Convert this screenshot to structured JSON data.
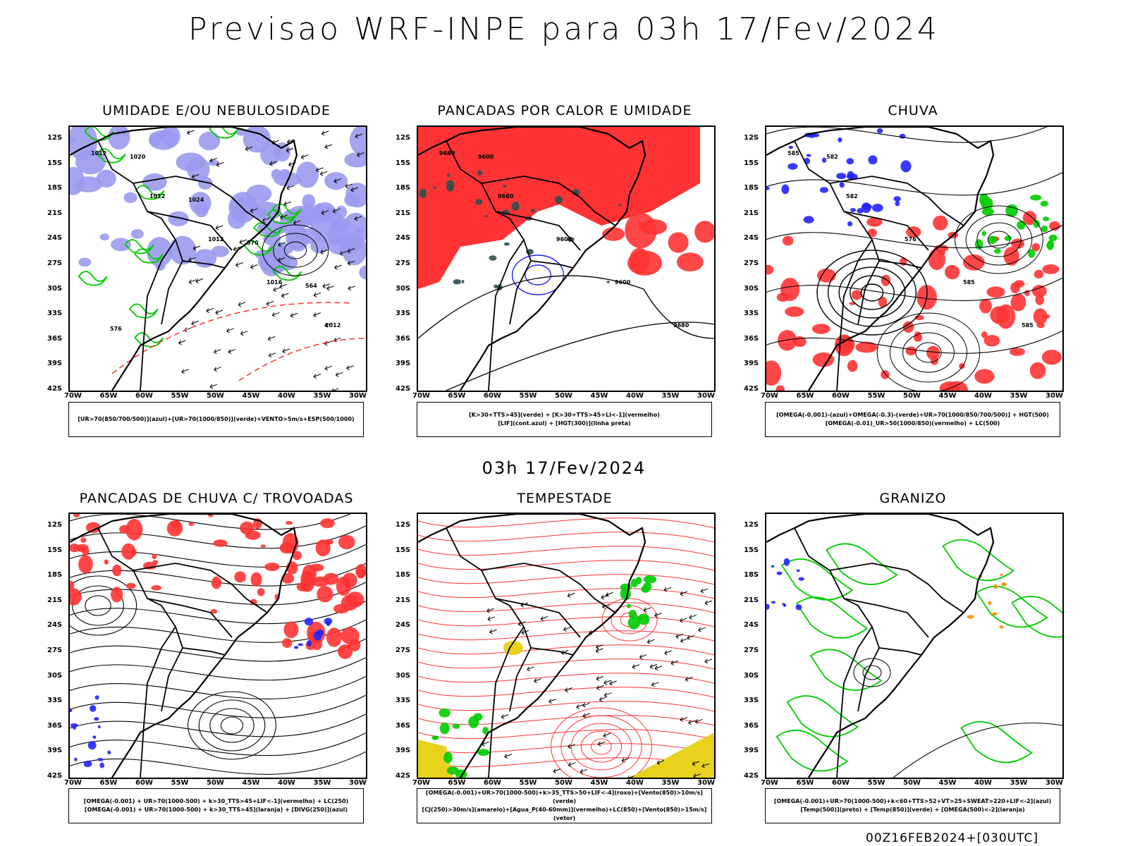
{
  "title": "Previsao WRF-INPE  para 03h 17/Fev/2024",
  "subtitle": "03h 17/Fev/2024",
  "footer": "00Z16FEB2024+[030UTC]",
  "lat_labels": [
    "12S",
    "15S",
    "18S",
    "21S",
    "24S",
    "27S",
    "30S",
    "33S",
    "36S",
    "39S",
    "42S"
  ],
  "lon_labels": [
    "70W",
    "65W",
    "60W",
    "55W",
    "50W",
    "45W",
    "40W",
    "35W",
    "30W"
  ],
  "colors": {
    "green": "#00cc00",
    "red": "#ff3333",
    "blue": "#2222ff",
    "lavender": "#9a9aee",
    "orange": "#ff8c00",
    "yellow": "#e8d21e",
    "purple": "#9900cc",
    "darkslate": "#2f4f4f"
  },
  "panels": [
    {
      "title": "UMIDADE E/OU NEBULOSIDADE",
      "legend": [
        "[UR>70(850/700/500)](azul)+[UR>70(1000/850)](verde)+VENTO>5m/s+ESP(500/1000)"
      ],
      "contour_labels": [
        "1012",
        "1012",
        "1012",
        "1016",
        "1012",
        "1020",
        "1024",
        "570",
        "564",
        "576"
      ]
    },
    {
      "title": "PANCADAS POR CALOR E UMIDADE",
      "legend": [
        "[K>30+TTS>45](verde) + [K>30+TTS>45+LI<-1](vermelho)",
        "[LIF](cont.azul) + [HGT(300)](linha preta)"
      ],
      "contour_labels": [
        "9680",
        "9680",
        "9600",
        "9600",
        "9680",
        "9600"
      ]
    },
    {
      "title": "CHUVA",
      "legend": [
        "[OMEGA(-0.001)-(azul)+OMEGA(-0.3)-(verde)+UR>70(1000/850/700/500)] + HGT(500)",
        "[OMEGA(-0.01)_UR>50(1000/850)(vermelho) + LC(500)"
      ],
      "contour_labels": [
        "585",
        "582",
        "576",
        "585",
        "585",
        "582"
      ]
    },
    {
      "title": "PANCADAS DE CHUVA C/ TROVOADAS",
      "legend": [
        "[OMEGA(-0.001) + UR>70(1000-500) + k>30_TTS>45+LIF<-1](vermelho) + LC(250)",
        "[OMEGA(-0.001) + UR>70(1000-500) + k>30_TTS>45](laranja) + [DIVG(250)](azul)"
      ],
      "contour_labels": []
    },
    {
      "title": "TEMPESTADE",
      "legend": [
        "[OMEGA(-0.001)+UR>70(1000-500)+k>35_TTS>50+LIF<-4](roxo)+[Vento(850)>10m/s](verde)",
        "[CJ(250)>30m/s](amarelo)+[Agua_P(40-60mm)](vermelho)+LC(850)+[Vento(850)>15m/s](vetor)"
      ],
      "contour_labels": []
    },
    {
      "title": "GRANIZO",
      "legend": [
        "[OMEGA(-0.001)+UR>70(1000-500)+k<60+TTS>52+VT>25+SWEAT>220+LIF<-2](azul)",
        "[Temp(500)](preto) + [Temp(850)](verde) + [OMEGA(500)<-2](laranja)"
      ],
      "contour_labels": []
    }
  ],
  "chart_data": [
    {
      "type": "map",
      "title": "UMIDADE E/OU NEBULOSIDADE",
      "lat_range": [
        "12S",
        "42S"
      ],
      "lon_range": [
        "70W",
        "30W"
      ]
    },
    {
      "type": "map",
      "title": "PANCADAS POR CALOR E UMIDADE",
      "lat_range": [
        "12S",
        "42S"
      ],
      "lon_range": [
        "70W",
        "30W"
      ]
    },
    {
      "type": "map",
      "title": "CHUVA",
      "lat_range": [
        "12S",
        "42S"
      ],
      "lon_range": [
        "70W",
        "30W"
      ]
    },
    {
      "type": "map",
      "title": "PANCADAS DE CHUVA C/ TROVOADAS",
      "lat_range": [
        "12S",
        "42S"
      ],
      "lon_range": [
        "70W",
        "30W"
      ]
    },
    {
      "type": "map",
      "title": "TEMPESTADE",
      "lat_range": [
        "12S",
        "42S"
      ],
      "lon_range": [
        "70W",
        "30W"
      ]
    },
    {
      "type": "map",
      "title": "GRANIZO",
      "lat_range": [
        "12S",
        "42S"
      ],
      "lon_range": [
        "70W",
        "30W"
      ]
    }
  ]
}
